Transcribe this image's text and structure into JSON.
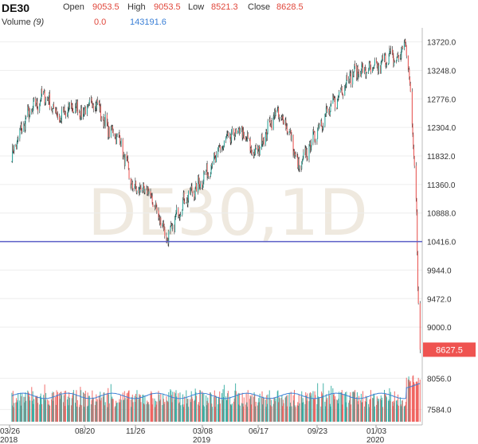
{
  "header": {
    "symbol": "DE30",
    "open_label": "Open",
    "open_value": "9053.5",
    "high_label": "High",
    "high_value": "9053.5",
    "low_label": "Low",
    "low_value": "8521.3",
    "close_label": "Close",
    "close_value": "8628.5",
    "volume_label": "Volume",
    "volume_period": "(9)",
    "volume_value": "0.0",
    "volume_ma_value": "143191.6"
  },
  "watermark": "DE30,1D",
  "price_tag": "8627.5",
  "colors": {
    "up": "#26a69a",
    "down": "#ef5350",
    "line": "#5b5fc7",
    "tag": "#ef5350"
  },
  "chart_data": [
    {
      "type": "line",
      "x_ticks": [
        "03/26",
        "08/20",
        "11/26",
        "03/08",
        "06/17",
        "09/23",
        "01/03"
      ],
      "x_year_labels": [
        "2018",
        "2019",
        "2020"
      ],
      "y_ticks": [
        13720.0,
        13248.0,
        12776.0,
        12304.0,
        11832.0,
        11360.0,
        10888.0,
        10416.0,
        9944.0,
        9472.0,
        9000.0
      ],
      "ylim": [
        8528,
        13820
      ],
      "horizontal_line": 10416.0,
      "last_price": 8627.5,
      "series": [
        {
          "x": [
            "2018-03-26",
            "2018-04-20",
            "2018-05-22",
            "2018-06-20",
            "2018-07-10",
            "2018-07-30",
            "2018-08-20",
            "2018-09-10",
            "2018-10-01",
            "2018-10-25",
            "2018-11-20",
            "2018-11-27",
            "2018-12-27",
            "2019-01-20",
            "2019-02-15",
            "2019-03-08",
            "2019-04-05",
            "2019-05-03",
            "2019-05-30",
            "2019-06-17",
            "2019-07-04",
            "2019-07-25",
            "2019-08-15",
            "2019-09-01",
            "2019-09-23",
            "2019-10-20",
            "2019-11-10",
            "2019-12-01",
            "2019-12-20",
            "2020-01-03",
            "2020-01-20",
            "2020-02-05",
            "2020-02-17",
            "2020-02-25",
            "2020-03-05",
            "2020-03-10",
            "2020-03-12",
            "2020-03-16"
          ],
          "values": [
            11850,
            12450,
            12850,
            12450,
            12650,
            12550,
            12760,
            12300,
            12150,
            11300,
            11250,
            11150,
            10450,
            11050,
            11300,
            11600,
            12050,
            12250,
            11850,
            12200,
            12550,
            12350,
            11600,
            11950,
            12400,
            12750,
            13150,
            13250,
            13250,
            13300,
            13500,
            13400,
            13720,
            13300,
            11900,
            10900,
            9600,
            8628
          ]
        }
      ]
    },
    {
      "type": "bar",
      "title": "Volume",
      "y_ticks": [
        8056.0,
        7584.0
      ],
      "ylim": [
        7400,
        8120
      ],
      "series": [
        {
          "values": []
        }
      ]
    }
  ]
}
